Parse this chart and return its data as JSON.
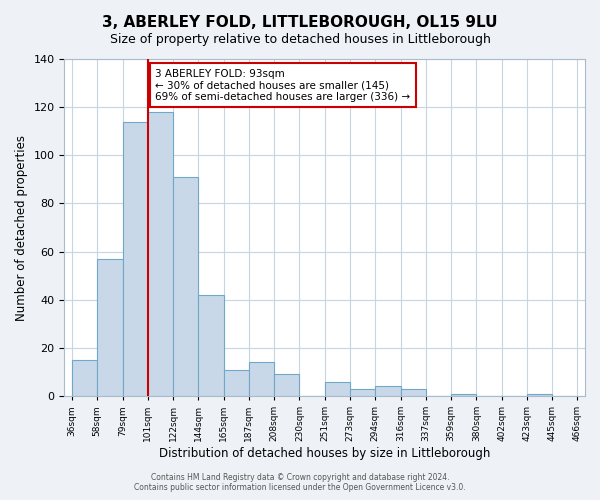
{
  "title": "3, ABERLEY FOLD, LITTLEBOROUGH, OL15 9LU",
  "subtitle": "Size of property relative to detached houses in Littleborough",
  "xlabel": "Distribution of detached houses by size in Littleborough",
  "ylabel": "Number of detached properties",
  "bar_values": [
    15,
    57,
    114,
    118,
    91,
    42,
    11,
    14,
    9,
    0,
    6,
    3,
    4,
    3,
    0,
    1,
    0,
    0,
    1,
    0
  ],
  "bar_labels": [
    "36sqm",
    "58sqm",
    "79sqm",
    "101sqm",
    "122sqm",
    "144sqm",
    "165sqm",
    "187sqm",
    "208sqm",
    "230sqm",
    "251sqm",
    "273sqm",
    "294sqm",
    "316sqm",
    "337sqm",
    "359sqm",
    "380sqm",
    "402sqm",
    "423sqm",
    "445sqm",
    "466sqm"
  ],
  "bar_color": "#c8d8e8",
  "bar_edge_color": "#6fa8c8",
  "ylim": [
    0,
    140
  ],
  "yticks": [
    0,
    20,
    40,
    60,
    80,
    100,
    120,
    140
  ],
  "vline_color": "#cc0000",
  "annotation_title": "3 ABERLEY FOLD: 93sqm",
  "annotation_line1": "← 30% of detached houses are smaller (145)",
  "annotation_line2": "69% of semi-detached houses are larger (336) →",
  "annotation_box_color": "#cc0000",
  "footer_line1": "Contains HM Land Registry data © Crown copyright and database right 2024.",
  "footer_line2": "Contains public sector information licensed under the Open Government Licence v3.0.",
  "bg_color": "#eef2f6",
  "plot_bg_color": "#ffffff",
  "grid_color": "#c8d4de"
}
